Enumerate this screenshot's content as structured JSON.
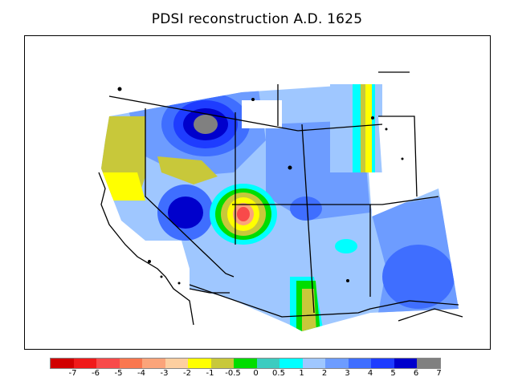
{
  "title": "PDSI reconstruction A.D. 1625",
  "colorbar": {
    "colors": [
      "#d10000",
      "#f01a1a",
      "#f84a4a",
      "#f9774f",
      "#fba47a",
      "#fdcfa0",
      "#ffff00",
      "#c8c83a",
      "#00dd00",
      "#3cccc0",
      "#00ffff",
      "#9fc7ff",
      "#6d9cff",
      "#3f6eff",
      "#1e3cff",
      "#0000cc",
      "#808080"
    ],
    "labels": [
      "-7",
      "-6",
      "-5",
      "-4",
      "-3",
      "-2",
      "-1",
      "-0.5",
      "0",
      "0.5",
      "1",
      "2",
      "3",
      "4",
      "5",
      "6",
      "7"
    ]
  },
  "legend": {
    "maximum_class_color": "#808080",
    "wet_class_color": "#0000cc",
    "dry_class_color": "#d10000"
  }
}
